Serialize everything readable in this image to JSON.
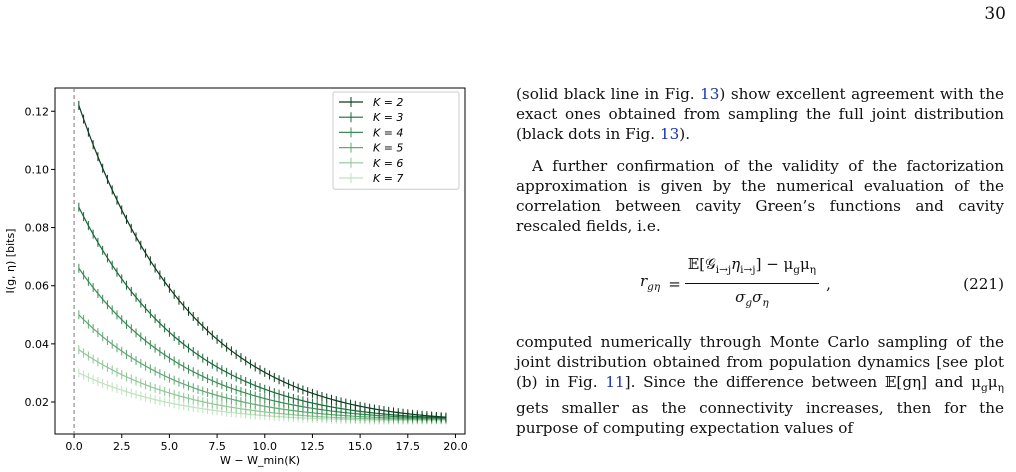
{
  "page_number": "30",
  "figure": {
    "chart_data": {
      "type": "line",
      "xlabel": "W − W_min(K)",
      "ylabel": "I(g, η) [bits]",
      "xlim": [
        -1.0,
        20.5
      ],
      "ylim": [
        0.009,
        0.128
      ],
      "xticks": [
        0.0,
        2.5,
        5.0,
        7.5,
        10.0,
        12.5,
        15.0,
        17.5,
        20.0
      ],
      "xtick_labels": [
        "0.0",
        "2.5",
        "5.0",
        "7.5",
        "10.0",
        "12.5",
        "15.0",
        "17.5",
        "20.0"
      ],
      "yticks": [
        0.02,
        0.04,
        0.06,
        0.08,
        0.1,
        0.12
      ],
      "ytick_labels": [
        "0.02",
        "0.04",
        "0.06",
        "0.08",
        "0.10",
        "0.12"
      ],
      "vline_x": 0.0,
      "grid": false,
      "legend_position": "top-right",
      "x_points": {
        "start": 0.25,
        "end": 19.5,
        "step": 0.25
      },
      "series": [
        {
          "name": "K = 2",
          "color": "#0b3d1e",
          "start_value": 0.122,
          "plateau": 0.0005,
          "decay": 6.2,
          "tail_value": 0.0148
        },
        {
          "name": "K = 3",
          "color": "#1c6b3a",
          "start_value": 0.087,
          "plateau": 0.003,
          "decay": 6.2,
          "tail_value": 0.0146
        },
        {
          "name": "K = 4",
          "color": "#3b8c54",
          "start_value": 0.066,
          "plateau": 0.0055,
          "decay": 6.2,
          "tail_value": 0.0144
        },
        {
          "name": "K = 5",
          "color": "#62a972",
          "start_value": 0.05,
          "plateau": 0.0068,
          "decay": 6.2,
          "tail_value": 0.0142
        },
        {
          "name": "K = 6",
          "color": "#8fc795",
          "start_value": 0.038,
          "plateau": 0.008,
          "decay": 6.2,
          "tail_value": 0.014
        },
        {
          "name": "K = 7",
          "color": "#bfe2bf",
          "start_value": 0.03,
          "plateau": 0.009,
          "decay": 6.2,
          "tail_value": 0.0138
        }
      ]
    }
  },
  "text": {
    "para1_a": "(solid black line in Fig. ",
    "para1_ref1": "13",
    "para1_b": ") show excellent agreement with the exact ones obtained from sampling the full joint distribution (black dots in Fig. ",
    "para1_ref2": "13",
    "para1_c": ").",
    "para2": "A further confirmation of the validity of the factorization approximation is given by the numerical evaluation of the correlation between cavity Green’s functions and cavity rescaled fields, i.e.",
    "eq_lhs": "r",
    "eq_lhs_sub": "gη",
    "eq_numerator": "𝔼[𝒢",
    "eq_num_sub1": "i→j",
    "eq_num_mid": "η",
    "eq_num_sub2": "i→j",
    "eq_num_end": "] − μ",
    "eq_num_sub3": "g",
    "eq_num_end2": "μ",
    "eq_num_sub4": "η",
    "eq_den1": "σ",
    "eq_den_sub1": "g",
    "eq_den2": "σ",
    "eq_den_sub2": "η",
    "eq_tail": ",",
    "eq_number": "(221)",
    "para3_a": "computed numerically through Monte Carlo sampling of the joint distribution obtained from population dynamics [see plot (b) in Fig. ",
    "para3_ref": "11",
    "para3_b": "]. Since the difference between 𝔼[gη] and μ",
    "para3_sub1": "g",
    "para3_c": "μ",
    "para3_sub2": "η",
    "para3_d": " gets smaller as the connectivity increases, then for the purpose of computing expectation values of"
  }
}
